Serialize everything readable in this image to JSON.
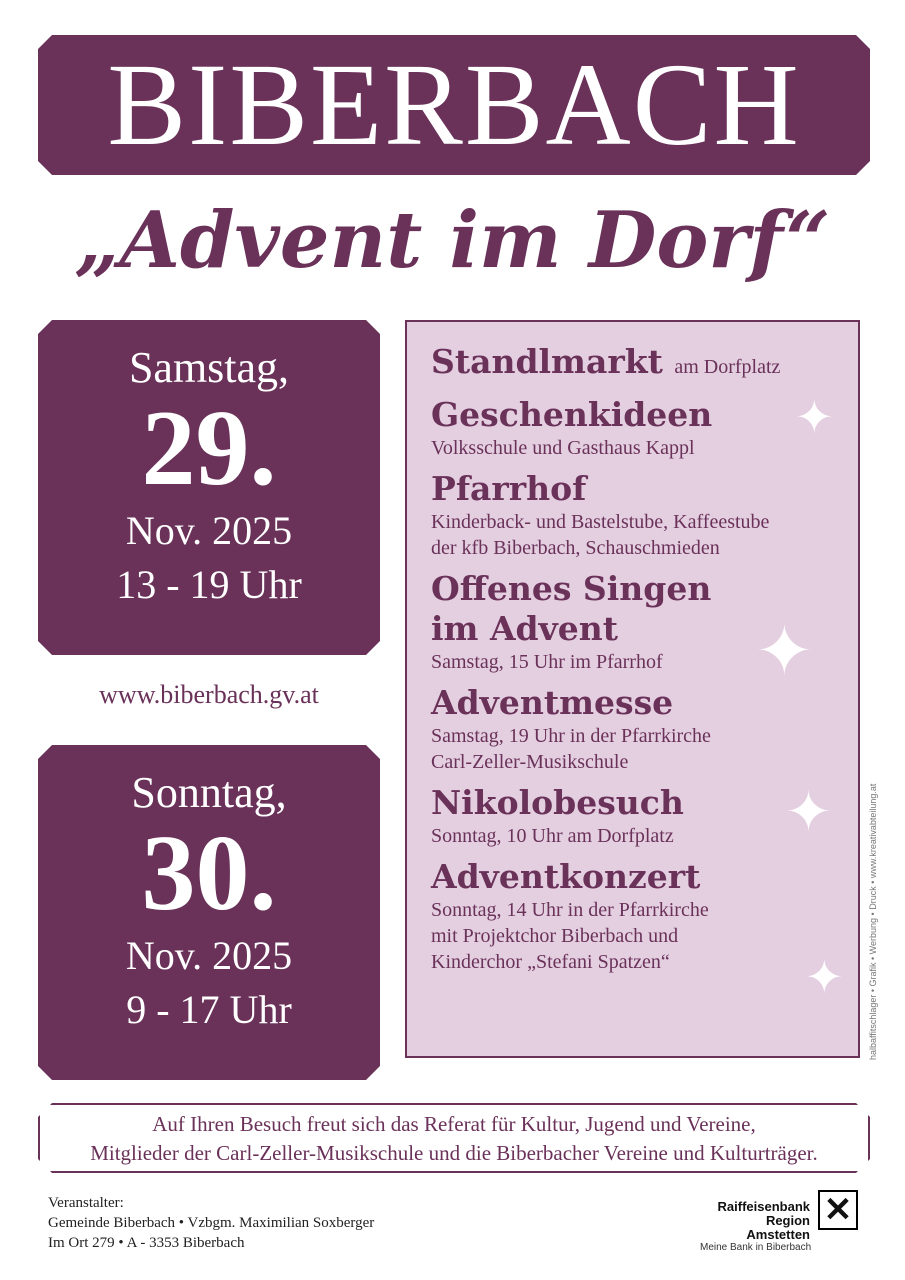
{
  "title": "BIBERBACH",
  "subtitle": "„Advent im Dorf“",
  "saturday": {
    "day": "Samstag,",
    "date": "29.",
    "month": "Nov. 2025",
    "time": "13 - 19 Uhr"
  },
  "url": "www.biberbach.gv.at",
  "sunday": {
    "day": "Sonntag,",
    "date": "30.",
    "month": "Nov. 2025",
    "time": "9 - 17 Uhr"
  },
  "program": [
    {
      "heading": "Standlmarkt",
      "suffix": "am Dorfplatz",
      "lines": []
    },
    {
      "heading": "Geschenkideen",
      "lines": [
        "Volksschule und Gasthaus Kappl"
      ]
    },
    {
      "heading": "Pfarrhof",
      "lines": [
        "Kinderback- und Bastelstube, Kaffeestube",
        "der kfb Biberbach, Schauschmieden"
      ]
    },
    {
      "heading": "Offenes Singen",
      "heading2": "im Advent",
      "lines": [
        "Samstag, 15 Uhr im Pfarrhof"
      ]
    },
    {
      "heading": "Adventmesse",
      "lines": [
        "Samstag, 19 Uhr in der Pfarrkirche",
        "Carl-Zeller-Musikschule"
      ]
    },
    {
      "heading": "Nikolobesuch",
      "lines": [
        "Sonntag, 10 Uhr am Dorfplatz"
      ]
    },
    {
      "heading": "Adventkonzert",
      "lines": [
        "Sonntag, 14 Uhr in der Pfarrkirche",
        "mit Projektchor Biberbach und",
        "Kinderchor „Stefani Spatzen“"
      ]
    }
  ],
  "credit": "halbaffitschlager • Grafik • Werbung • Druck • www.kreativabteilung.at",
  "thanks": [
    "Auf Ihren Besuch freut sich das Referat für Kultur, Jugend und Vereine,",
    "Mitglieder der Carl-Zeller-Musikschule und die Biberbacher Vereine und Kulturträger."
  ],
  "organizer": [
    "Veranstalter:",
    "Gemeinde Biberbach • Vzbgm. Maximilian Soxberger",
    "Im Ort 279 • A - 3353 Biberbach"
  ],
  "sponsor": {
    "name1": "Raiffeisenbank",
    "name2": "Region Amstetten",
    "slogan": "Meine Bank in Biberbach"
  },
  "colors": {
    "primary": "#6a3159",
    "panel": "#e4cfe1"
  }
}
